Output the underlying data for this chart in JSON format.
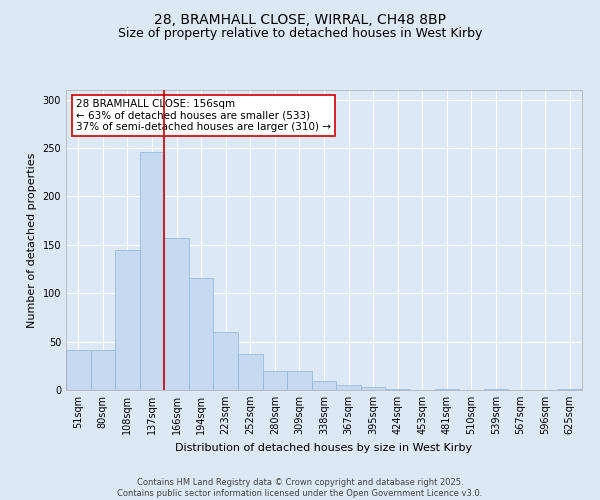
{
  "title_line1": "28, BRAMHALL CLOSE, WIRRAL, CH48 8BP",
  "title_line2": "Size of property relative to detached houses in West Kirby",
  "xlabel": "Distribution of detached houses by size in West Kirby",
  "ylabel": "Number of detached properties",
  "categories": [
    "51sqm",
    "80sqm",
    "108sqm",
    "137sqm",
    "166sqm",
    "194sqm",
    "223sqm",
    "252sqm",
    "280sqm",
    "309sqm",
    "338sqm",
    "367sqm",
    "395sqm",
    "424sqm",
    "453sqm",
    "481sqm",
    "510sqm",
    "539sqm",
    "567sqm",
    "596sqm",
    "625sqm"
  ],
  "values": [
    41,
    41,
    145,
    246,
    157,
    116,
    60,
    37,
    20,
    20,
    9,
    5,
    3,
    1,
    0,
    1,
    0,
    1,
    0,
    0,
    1
  ],
  "bar_color": "#c6d9f0",
  "bar_edgecolor": "#8db4d9",
  "bar_linewidth": 0.5,
  "vline_color": "#cc0000",
  "vline_linewidth": 1.2,
  "vline_pos": 3.5,
  "annotation_text": "28 BRAMHALL CLOSE: 156sqm\n← 63% of detached houses are smaller (533)\n37% of semi-detached houses are larger (310) →",
  "annotation_box_facecolor": "#ffffff",
  "annotation_box_edgecolor": "#cc0000",
  "annotation_fontsize": 7.5,
  "ylim": [
    0,
    310
  ],
  "yticks": [
    0,
    50,
    100,
    150,
    200,
    250,
    300
  ],
  "background_color": "#dce8f5",
  "grid_color": "#ffffff",
  "title_fontsize": 10,
  "subtitle_fontsize": 9,
  "xlabel_fontsize": 8,
  "ylabel_fontsize": 8,
  "tick_fontsize": 7,
  "footer_text": "Contains HM Land Registry data © Crown copyright and database right 2025.\nContains public sector information licensed under the Open Government Licence v3.0."
}
